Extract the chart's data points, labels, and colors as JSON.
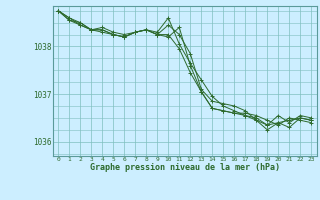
{
  "title": "Graphe pression niveau de la mer (hPa)",
  "bg_color": "#cceeff",
  "plot_bg_color": "#cceeff",
  "line_color": "#2d6a2d",
  "grid_color": "#7fbfbf",
  "text_color": "#2d6a2d",
  "xlim": [
    -0.5,
    23.5
  ],
  "ylim": [
    1035.7,
    1038.85
  ],
  "yticks": [
    1036,
    1037,
    1038
  ],
  "xticks": [
    0,
    1,
    2,
    3,
    4,
    5,
    6,
    7,
    8,
    9,
    10,
    11,
    12,
    13,
    14,
    15,
    16,
    17,
    18,
    19,
    20,
    21,
    22,
    23
  ],
  "series": [
    [
      1038.75,
      1038.55,
      1038.45,
      1038.35,
      1038.3,
      1038.25,
      1038.2,
      1038.3,
      1038.35,
      1038.25,
      1038.45,
      1038.25,
      1037.85,
      1037.1,
      1036.85,
      1036.8,
      1036.75,
      1036.65,
      1036.45,
      1036.35,
      1036.55,
      1036.4,
      1036.55,
      1036.5
    ],
    [
      1038.75,
      1038.6,
      1038.45,
      1038.35,
      1038.35,
      1038.25,
      1038.2,
      1038.3,
      1038.35,
      1038.3,
      1038.6,
      1038.05,
      1037.65,
      1037.3,
      1036.95,
      1036.75,
      1036.65,
      1036.55,
      1036.45,
      1036.25,
      1036.4,
      1036.3,
      1036.5,
      1036.45
    ],
    [
      1038.75,
      1038.55,
      1038.5,
      1038.35,
      1038.4,
      1038.3,
      1038.25,
      1038.3,
      1038.35,
      1038.25,
      1038.2,
      1038.4,
      1037.6,
      1037.05,
      1036.7,
      1036.65,
      1036.6,
      1036.6,
      1036.55,
      1036.45,
      1036.35,
      1036.5,
      1036.45,
      1036.4
    ],
    [
      1038.75,
      1038.6,
      1038.5,
      1038.35,
      1038.35,
      1038.25,
      1038.2,
      1038.3,
      1038.35,
      1038.25,
      1038.25,
      1037.95,
      1037.45,
      1037.05,
      1036.7,
      1036.65,
      1036.6,
      1036.55,
      1036.5,
      1036.35,
      1036.4,
      1036.45,
      1036.5,
      1036.45
    ]
  ]
}
